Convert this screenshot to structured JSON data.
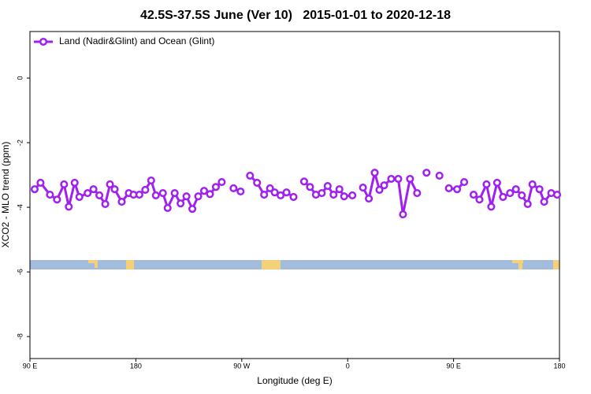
{
  "chart_data": {
    "type": "line",
    "title": "42.5S-37.5S June (Ver 10)   2015-01-01 to 2020-12-18",
    "x_label": "Longitude (deg E)",
    "y_label": "XCO2 - MLO trend (ppm)",
    "xlim": [
      90,
      540
    ],
    "ylim": [
      -8.68,
      1.44
    ],
    "xticks": [
      {
        "value": 90,
        "label": "90 E"
      },
      {
        "value": 180,
        "label": "180"
      },
      {
        "value": 270,
        "label": "90 W"
      },
      {
        "value": 360,
        "label": "0"
      },
      {
        "value": 450,
        "label": "90 E"
      },
      {
        "value": 540,
        "label": "180"
      }
    ],
    "yticks": [
      0,
      -2,
      -4,
      -6,
      -8
    ],
    "legend": "top-left",
    "x": [
      94,
      99,
      107,
      113,
      119,
      123,
      128,
      132,
      139,
      144,
      149,
      154,
      158,
      162,
      168,
      174,
      178,
      183,
      188,
      193,
      197,
      203,
      207,
      213,
      218,
      223,
      228,
      233,
      238,
      243,
      248,
      253,
      258,
      263,
      269,
      273,
      277,
      283,
      289,
      294,
      298,
      303,
      308,
      314,
      318,
      323,
      328,
      333,
      338,
      343,
      348,
      353,
      357,
      364,
      368,
      373,
      378,
      383,
      387,
      391,
      397,
      403,
      407,
      413,
      419,
      423,
      427,
      433,
      438,
      442,
      446,
      453,
      459,
      463,
      467,
      472,
      478,
      482,
      487,
      492,
      498,
      503,
      508,
      513,
      517,
      523,
      527,
      533,
      538
    ],
    "series": [
      {
        "name": "Land (Nadir&Glint) and Ocean (Glint)",
        "color": "#a020f0",
        "values": [
          -3.44,
          -3.24,
          -3.61,
          -3.76,
          -3.29,
          -3.98,
          -3.24,
          -3.68,
          -3.56,
          -3.44,
          -3.63,
          -3.9,
          -3.29,
          -3.44,
          -3.83,
          -3.56,
          -3.61,
          -3.61,
          -3.46,
          -3.17,
          -3.63,
          -3.56,
          -4.02,
          -3.56,
          -3.88,
          -3.66,
          -4.05,
          -3.66,
          -3.49,
          -3.59,
          -3.37,
          -3.22,
          null,
          -3.41,
          -3.51,
          null,
          -3.02,
          -3.24,
          -3.61,
          -3.41,
          -3.54,
          -3.63,
          -3.54,
          -3.68,
          null,
          -3.2,
          -3.37,
          -3.61,
          -3.56,
          -3.34,
          -3.61,
          -3.44,
          -3.66,
          -3.63,
          null,
          -3.39,
          -3.73,
          -2.93,
          -3.46,
          -3.32,
          -3.12,
          -3.12,
          -4.22,
          -3.12,
          -3.56,
          null,
          -2.93,
          null,
          -3.02,
          null,
          -3.41,
          -3.44,
          -3.22,
          null,
          -3.61,
          -3.76,
          -3.29,
          -3.98,
          -3.24,
          -3.68,
          -3.56,
          -3.44,
          -3.63,
          -3.9,
          -3.29,
          -3.44,
          -3.83,
          -3.56,
          -3.61
        ]
      }
    ]
  }
}
